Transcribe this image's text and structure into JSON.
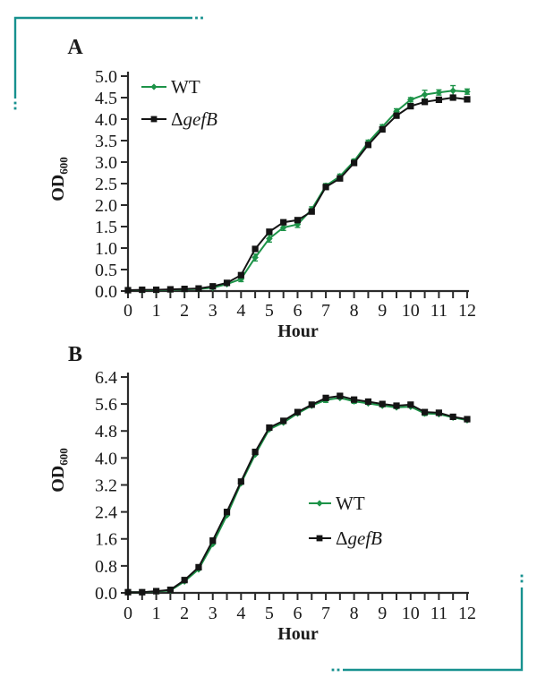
{
  "figure": {
    "background": "#ffffff",
    "accent_teal": "#17918f",
    "series_green": "#1d9348",
    "series_black": "#141414",
    "axis_color": "#2b2b2b"
  },
  "chart_data": [
    {
      "type": "line",
      "panel_label": "A",
      "xlabel": "Hour",
      "ylabel": "OD",
      "ylabel_sub": "600",
      "xlim": [
        0,
        12
      ],
      "ylim": [
        0,
        5.0
      ],
      "ytick_step": 0.5,
      "xtick_minor_step": 0.5,
      "xtick_label_step": 1,
      "grid": false,
      "legend_position": "upper-left-inside",
      "x": [
        0,
        0.5,
        1,
        1.5,
        2,
        2.5,
        3,
        3.5,
        4,
        4.5,
        5,
        5.5,
        6,
        6.5,
        7,
        7.5,
        8,
        8.5,
        9,
        9.5,
        10,
        10.5,
        11,
        11.5,
        12
      ],
      "series": [
        {
          "name": "WT",
          "label_prefix": "",
          "label": "WT",
          "label_italic": false,
          "marker": "diamond",
          "color": "#1d9348",
          "values": [
            0.02,
            0.02,
            0.02,
            0.03,
            0.04,
            0.05,
            0.08,
            0.16,
            0.28,
            0.78,
            1.22,
            1.48,
            1.55,
            1.9,
            2.45,
            2.67,
            3.02,
            3.46,
            3.82,
            4.18,
            4.45,
            4.57,
            4.62,
            4.66,
            4.64
          ],
          "errors": [
            0,
            0,
            0,
            0,
            0,
            0,
            0,
            0,
            0.06,
            0.08,
            0.08,
            0.07,
            0.07,
            0.06,
            0.05,
            0.05,
            0.05,
            0.05,
            0.05,
            0.06,
            0.05,
            0.1,
            0.06,
            0.12,
            0.06
          ]
        },
        {
          "name": "ΔgefB",
          "label_prefix": "Δ",
          "label": "gefB",
          "label_italic": true,
          "marker": "square",
          "color": "#141414",
          "values": [
            0.02,
            0.03,
            0.03,
            0.04,
            0.05,
            0.06,
            0.11,
            0.19,
            0.37,
            0.98,
            1.38,
            1.6,
            1.65,
            1.85,
            2.42,
            2.62,
            2.98,
            3.4,
            3.76,
            4.08,
            4.3,
            4.4,
            4.45,
            4.5,
            4.46
          ],
          "errors": [
            0,
            0,
            0,
            0,
            0,
            0,
            0,
            0,
            0,
            0,
            0,
            0,
            0,
            0,
            0,
            0,
            0,
            0,
            0,
            0,
            0,
            0,
            0,
            0,
            0
          ]
        }
      ]
    },
    {
      "type": "line",
      "panel_label": "B",
      "xlabel": "Hour",
      "ylabel": "OD",
      "ylabel_sub": "600",
      "xlim": [
        0,
        12
      ],
      "ylim": [
        0,
        6.4
      ],
      "ytick_step": 0.8,
      "xtick_minor_step": 0.5,
      "xtick_label_step": 1,
      "grid": false,
      "legend_position": "lower-right-inside",
      "x": [
        0,
        0.5,
        1,
        1.5,
        2,
        2.5,
        3,
        3.5,
        4,
        4.5,
        5,
        5.5,
        6,
        6.5,
        7,
        7.5,
        8,
        8.5,
        9,
        9.5,
        10,
        10.5,
        11,
        11.5,
        12
      ],
      "series": [
        {
          "name": "WT",
          "label_prefix": "",
          "label": "WT",
          "label_italic": false,
          "marker": "diamond",
          "color": "#1d9348",
          "values": [
            0.02,
            0.02,
            0.04,
            0.07,
            0.34,
            0.7,
            1.45,
            2.3,
            3.25,
            4.1,
            4.85,
            5.05,
            5.32,
            5.55,
            5.72,
            5.78,
            5.68,
            5.62,
            5.55,
            5.5,
            5.52,
            5.32,
            5.3,
            5.2,
            5.12
          ],
          "errors": [
            0,
            0,
            0,
            0,
            0,
            0,
            0,
            0,
            0,
            0,
            0,
            0,
            0,
            0,
            0.07,
            0,
            0.06,
            0,
            0,
            0,
            0,
            0.06,
            0,
            0,
            0
          ]
        },
        {
          "name": "ΔgefB",
          "label_prefix": "Δ",
          "label": "gefB",
          "label_italic": true,
          "marker": "square",
          "color": "#141414",
          "values": [
            0.02,
            0.02,
            0.05,
            0.09,
            0.38,
            0.76,
            1.55,
            2.4,
            3.3,
            4.18,
            4.9,
            5.1,
            5.36,
            5.58,
            5.78,
            5.84,
            5.73,
            5.67,
            5.6,
            5.55,
            5.58,
            5.36,
            5.34,
            5.22,
            5.15
          ],
          "errors": [
            0,
            0,
            0,
            0,
            0,
            0,
            0,
            0,
            0,
            0,
            0,
            0,
            0,
            0,
            0.06,
            0,
            0,
            0,
            0,
            0,
            0,
            0,
            0,
            0,
            0
          ]
        }
      ]
    }
  ]
}
